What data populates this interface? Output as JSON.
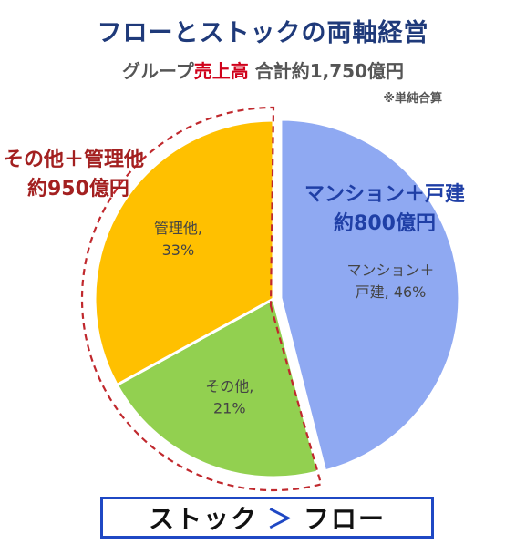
{
  "header": {
    "title": "フローとストックの両軸経営",
    "subtitle_prefix": "グループ",
    "subtitle_highlight": "売上高",
    "subtitle_suffix": "合計約1,750億円",
    "note": "※単純合算"
  },
  "callouts": {
    "left_line1": "その他＋管理他",
    "left_line2": "約950億円",
    "right_line1": "マンション＋戸建",
    "right_line2": "約800億円"
  },
  "footer": {
    "left": "ストック",
    "symbol": "＞",
    "right": "フロー"
  },
  "chart_data": {
    "type": "pie",
    "slices": [
      {
        "label": "マンション＋戸建",
        "label_line1": "マンション＋",
        "label_line2": "戸建, 46%",
        "value": 46,
        "color": "#8fa9f2"
      },
      {
        "label": "その他",
        "label_line1": "その他,",
        "label_line2": "21%",
        "value": 21,
        "color": "#92d050"
      },
      {
        "label": "管理他",
        "label_line1": "管理他,",
        "label_line2": "33%",
        "value": 33,
        "color": "#ffc000"
      }
    ],
    "start": "12 o'clock",
    "direction": "clockwise",
    "exploded_slice": "マンション＋戸建",
    "dashed_outline_group": [
      "その他",
      "管理他"
    ]
  }
}
